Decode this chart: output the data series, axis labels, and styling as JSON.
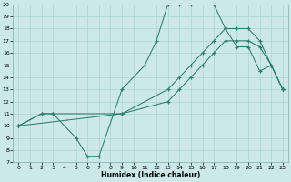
{
  "xlabel": "Humidex (Indice chaleur)",
  "xlim": [
    -0.5,
    23.5
  ],
  "ylim": [
    7,
    20
  ],
  "xticks": [
    0,
    1,
    2,
    3,
    4,
    5,
    6,
    7,
    8,
    9,
    10,
    11,
    12,
    13,
    14,
    15,
    16,
    17,
    18,
    19,
    20,
    21,
    22,
    23
  ],
  "yticks": [
    7,
    8,
    9,
    10,
    11,
    12,
    13,
    14,
    15,
    16,
    17,
    18,
    19,
    20
  ],
  "line_color": "#2e7d6d",
  "bg_color": "#cce8e8",
  "grid_color": "#b0d8d8",
  "line1_x": [
    0,
    2,
    3,
    5,
    6,
    7,
    9,
    11,
    12,
    13,
    14,
    15,
    16,
    17,
    18,
    19,
    20,
    21,
    22,
    23
  ],
  "line1_y": [
    10,
    11,
    11,
    9,
    7.5,
    7.5,
    13,
    15,
    17,
    20,
    20,
    20,
    20.2,
    20,
    18,
    16.5,
    16.5,
    14.5,
    15,
    13
  ],
  "line2_x": [
    0,
    2,
    3,
    9,
    13,
    14,
    15,
    16,
    17,
    18,
    19,
    20,
    21,
    22,
    23
  ],
  "line2_y": [
    10,
    11,
    11,
    11,
    13,
    14,
    15,
    16,
    17,
    18,
    18,
    18,
    17,
    15,
    13
  ],
  "line3_x": [
    0,
    9,
    13,
    14,
    15,
    16,
    17,
    18,
    19,
    20,
    21,
    22,
    23
  ],
  "line3_y": [
    10,
    11,
    12,
    13,
    14,
    15,
    16,
    17,
    17,
    17,
    16.5,
    15,
    13
  ]
}
